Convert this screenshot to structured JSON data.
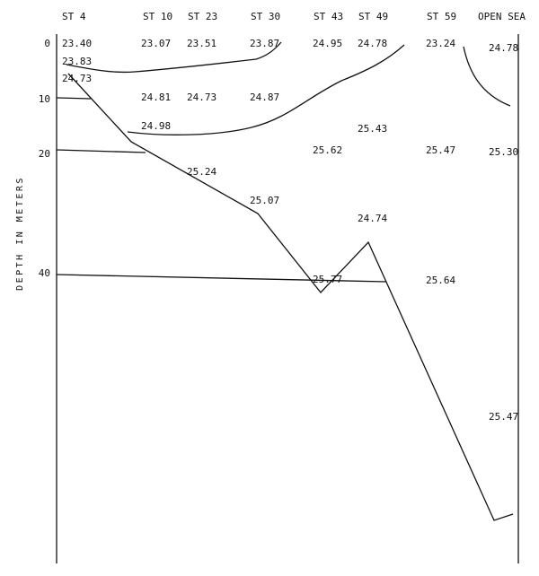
{
  "diagram": {
    "y_axis_label": "DEPTH IN METERS",
    "stations": [
      {
        "name": "ST 4"
      },
      {
        "name": "ST 10"
      },
      {
        "name": "ST 23"
      },
      {
        "name": "ST 30"
      },
      {
        "name": "ST 43"
      },
      {
        "name": "ST 49"
      },
      {
        "name": "ST 59"
      },
      {
        "name": "OPEN SEA"
      }
    ],
    "depth_ticks": [
      "0",
      "10",
      "20",
      "40"
    ],
    "values": [
      "23.40",
      "23.07",
      "23.51",
      "23.87",
      "24.95",
      "24.78",
      "23.24",
      "24.78",
      "23.83",
      "24.73",
      "24.81",
      "24.73",
      "24.87",
      "24.98",
      "25.43",
      "25.62",
      "25.47",
      "25.30",
      "25.24",
      "25.07",
      "24.74",
      "25.77",
      "25.64",
      "25.47"
    ]
  }
}
